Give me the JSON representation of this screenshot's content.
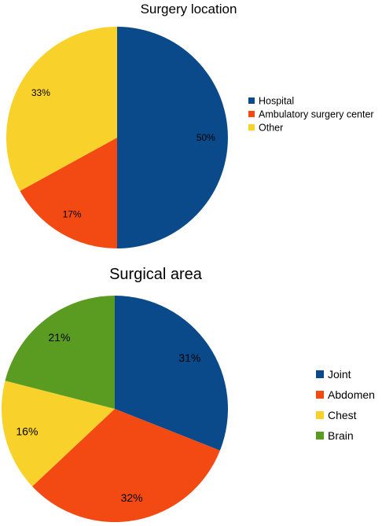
{
  "chart_data": [
    {
      "type": "pie",
      "title": "Surgery location",
      "legend_position": "right",
      "slices": [
        {
          "label": "Hospital",
          "value": 50,
          "display": "50%",
          "color": "#0B4A8A"
        },
        {
          "label": "Ambulatory surgery center",
          "value": 17,
          "display": "17%",
          "color": "#F24A12"
        },
        {
          "label": "Other",
          "value": 33,
          "display": "33%",
          "color": "#F9D12B"
        }
      ]
    },
    {
      "type": "pie",
      "title": "Surgical area",
      "legend_position": "right",
      "slices": [
        {
          "label": "Joint",
          "value": 31,
          "display": "31%",
          "color": "#0B4A8A"
        },
        {
          "label": "Abdomen",
          "value": 32,
          "display": "32%",
          "color": "#F24A12"
        },
        {
          "label": "Chest",
          "value": 16,
          "display": "16%",
          "color": "#F9D12B"
        },
        {
          "label": "Brain",
          "value": 21,
          "display": "21%",
          "color": "#5A9C22"
        }
      ]
    }
  ]
}
